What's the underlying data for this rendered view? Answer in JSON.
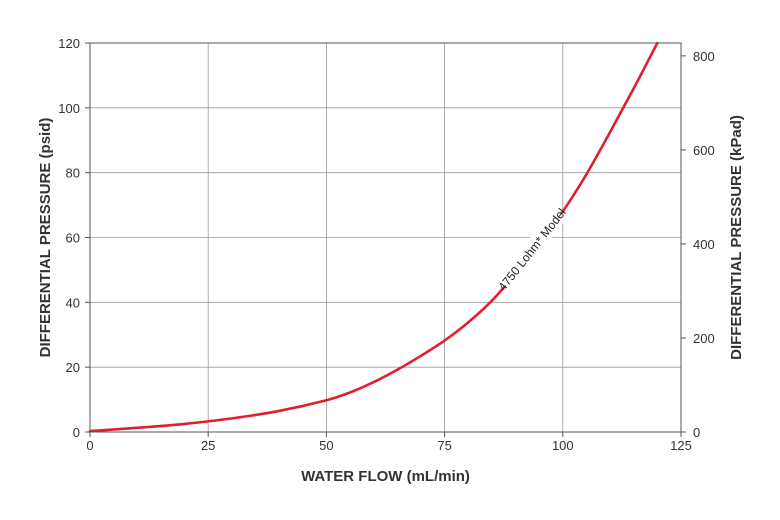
{
  "chart_data": {
    "type": "line",
    "title": "",
    "xlabel": "WATER FLOW (mL/min)",
    "ylabel": "DIFFERENTIAL PRESSURE (psid)",
    "y2label": "DIFFERENTIAL PRESSURE (kPad)",
    "xlim": [
      0,
      125
    ],
    "ylim": [
      0,
      120
    ],
    "y2lim": [
      0,
      827.4
    ],
    "x_ticks": [
      0,
      25,
      50,
      75,
      100,
      125
    ],
    "y_ticks": [
      0,
      20,
      40,
      60,
      80,
      100,
      120
    ],
    "y2_ticks": [
      0,
      200,
      400,
      600,
      800
    ],
    "grid": true,
    "line_color": "#e0202e",
    "series": [
      {
        "name": "4750 Lohm* Model",
        "x": [
          0,
          10,
          20,
          30,
          40,
          50,
          55,
          60,
          65,
          70,
          75,
          80,
          85,
          90,
          95,
          100,
          105,
          110,
          115,
          120
        ],
        "y": [
          0.3,
          1.3,
          2.5,
          4.2,
          6.5,
          9.8,
          12.2,
          15.4,
          19.2,
          23.5,
          28.2,
          33.8,
          40.5,
          48.8,
          58.0,
          68.0,
          79.5,
          92.5,
          106.0,
          120.0
        ]
      }
    ]
  }
}
